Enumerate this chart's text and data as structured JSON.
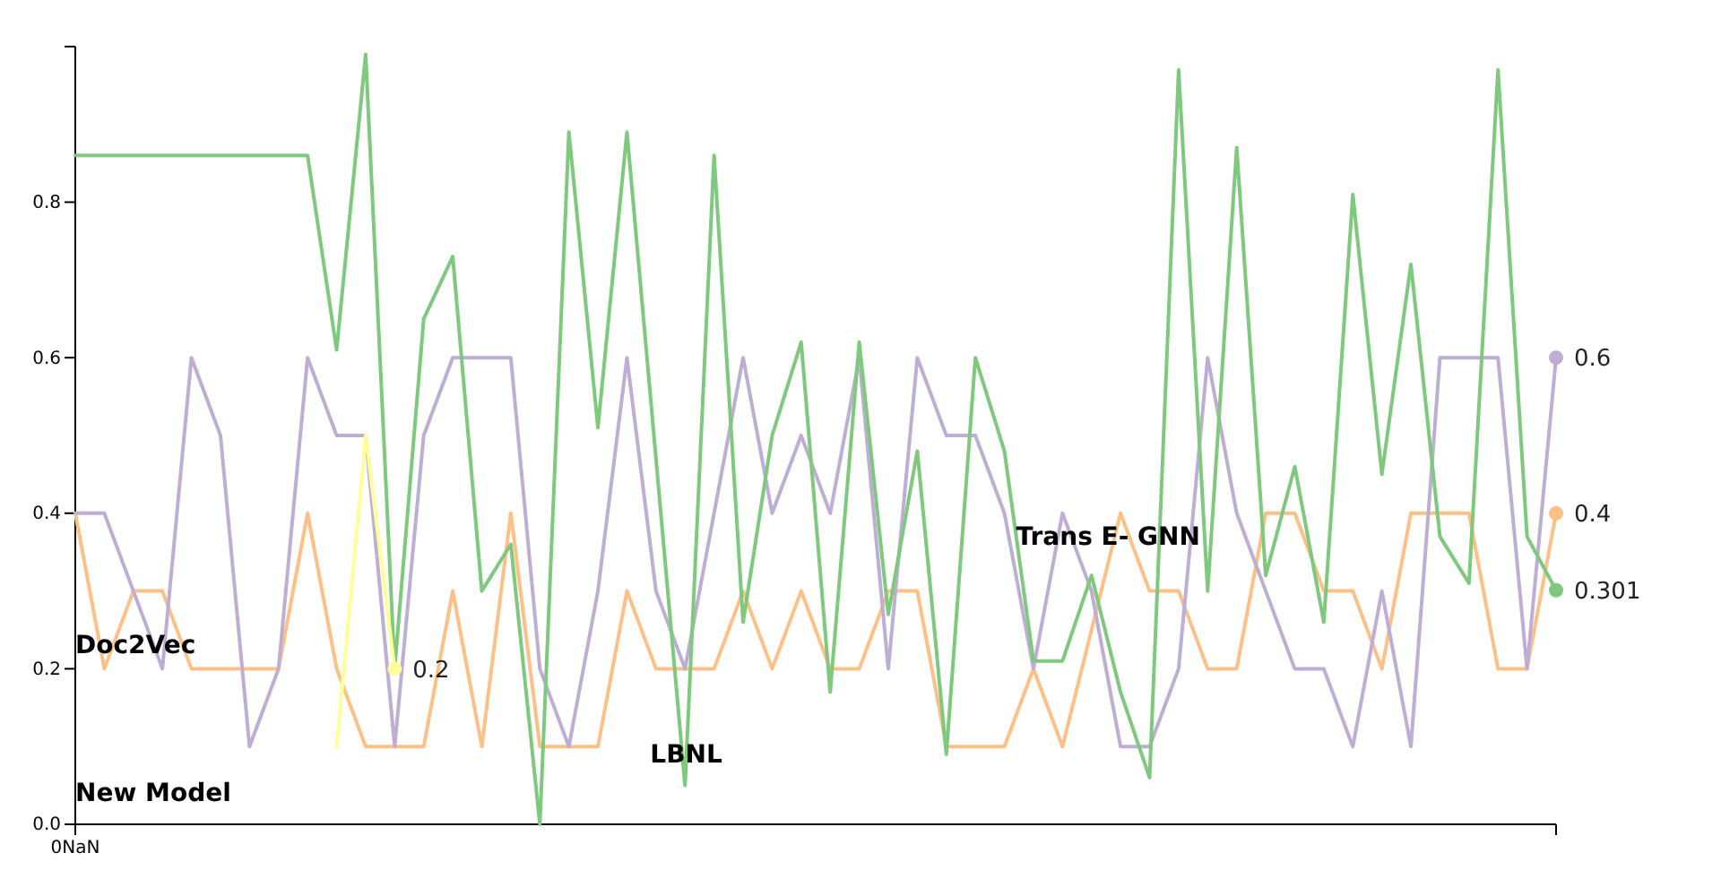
{
  "chart_data": {
    "type": "line",
    "categories": [
      "0NaN",
      null,
      null,
      null,
      null,
      null,
      null,
      null,
      null,
      null,
      null,
      null,
      null,
      null,
      null,
      null,
      null,
      null,
      null,
      null,
      null,
      null,
      null,
      null,
      null,
      null,
      null,
      null,
      null,
      null,
      null,
      null,
      null,
      null,
      null,
      null,
      null,
      null,
      null,
      null,
      null,
      null,
      null,
      null,
      null,
      null,
      null,
      null,
      null,
      null,
      null,
      null
    ],
    "ylim": [
      0,
      1
    ],
    "yticks": [
      {
        "value": 0,
        "label": "0.0"
      },
      {
        "value": 0.2,
        "label": "0.2"
      },
      {
        "value": 0.4,
        "label": "0.4"
      },
      {
        "value": 0.6,
        "label": "0.6"
      },
      {
        "value": 0.8,
        "label": "0.8"
      }
    ],
    "grid": false,
    "annotations": [
      "Doc2Vec",
      "LBNL",
      "Trans E- GNN",
      "New Model"
    ],
    "series": [
      {
        "color": "#fdc086",
        "values": [
          0.4,
          0.2,
          0.3,
          0.3,
          0.2,
          0.2,
          0.2,
          0.2,
          0.4,
          0.2,
          0.1,
          0.1,
          0.1,
          0.3,
          0.1,
          0.4,
          0.1,
          0.1,
          0.1,
          0.3,
          0.2,
          0.2,
          0.2,
          0.3,
          0.2,
          0.3,
          0.2,
          0.2,
          0.3,
          0.3,
          0.1,
          0.1,
          0.1,
          0.2,
          0.1,
          0.25,
          0.4,
          0.3,
          0.3,
          0.2,
          0.2,
          0.4,
          0.4,
          0.3,
          0.3,
          0.2,
          0.4,
          0.4,
          0.4,
          0.2,
          0.2,
          0.4
        ],
        "value_labels": [
          null,
          null,
          null,
          null,
          null,
          null,
          null,
          null,
          null,
          null,
          null,
          null,
          null,
          null,
          null,
          null,
          null,
          null,
          null,
          null,
          null,
          null,
          null,
          null,
          null,
          null,
          null,
          null,
          null,
          null,
          null,
          null,
          null,
          null,
          null,
          null,
          null,
          null,
          null,
          null,
          null,
          null,
          null,
          null,
          null,
          null,
          null,
          null,
          null,
          null,
          null,
          "0.4"
        ]
      },
      {
        "color": "#beaed4",
        "values": [
          0.4,
          0.4,
          0.3,
          0.2,
          0.6,
          0.5,
          0.1,
          0.2,
          0.6,
          0.5,
          0.5,
          0.1,
          0.5,
          0.6,
          0.6,
          0.6,
          0.2,
          0.1,
          0.3,
          0.6,
          0.3,
          0.2,
          0.4,
          0.6,
          0.4,
          0.5,
          0.4,
          0.6,
          0.2,
          0.6,
          0.5,
          0.5,
          0.4,
          0.2,
          0.4,
          0.3,
          0.1,
          0.1,
          0.2,
          0.6,
          0.4,
          0.3,
          0.2,
          0.2,
          0.1,
          0.3,
          0.1,
          0.6,
          0.6,
          0.6,
          0.2,
          0.6
        ],
        "value_labels": [
          null,
          null,
          null,
          null,
          null,
          null,
          null,
          null,
          null,
          null,
          null,
          null,
          null,
          null,
          null,
          null,
          null,
          null,
          null,
          null,
          null,
          null,
          null,
          null,
          null,
          null,
          null,
          null,
          null,
          null,
          null,
          null,
          null,
          null,
          null,
          null,
          null,
          null,
          null,
          null,
          null,
          null,
          null,
          null,
          null,
          null,
          null,
          null,
          null,
          null,
          null,
          "0.6"
        ]
      },
      {
        "color": "#7fc97f",
        "values": [
          0.86,
          0.86,
          0.86,
          0.86,
          0.86,
          0.86,
          0.86,
          0.86,
          0.86,
          0.61,
          0.99,
          0.2,
          0.65,
          0.73,
          0.3,
          0.36,
          0,
          0.89,
          0.51,
          0.89,
          0.47,
          0.05,
          0.86,
          0.26,
          0.5,
          0.62,
          0.17,
          0.62,
          0.27,
          0.48,
          0.09,
          0.6,
          0.48,
          0.21,
          0.21,
          0.32,
          0.17,
          0.06,
          0.97,
          0.3,
          0.87,
          0.32,
          0.46,
          0.26,
          0.81,
          0.45,
          0.72,
          0.37,
          0.31,
          0.97,
          0.37,
          0.301
        ],
        "value_labels": [
          null,
          null,
          null,
          null,
          null,
          null,
          null,
          null,
          null,
          null,
          null,
          null,
          null,
          null,
          null,
          null,
          null,
          null,
          null,
          null,
          null,
          null,
          null,
          null,
          null,
          null,
          null,
          null,
          null,
          null,
          null,
          null,
          null,
          null,
          null,
          null,
          null,
          null,
          null,
          null,
          null,
          null,
          null,
          null,
          null,
          null,
          null,
          null,
          null,
          null,
          null,
          "0.301"
        ]
      },
      {
        "color": "#ffff99",
        "values": [
          null,
          null,
          null,
          null,
          null,
          null,
          null,
          null,
          null,
          0.1,
          0.5,
          0.2,
          null,
          null,
          null,
          null,
          null,
          null,
          null,
          null,
          null,
          null,
          null,
          null,
          null,
          null,
          null,
          null,
          null,
          null,
          null,
          null,
          null,
          null,
          null,
          null,
          null,
          null,
          null,
          null,
          null,
          null,
          null,
          null,
          null,
          null,
          null,
          null,
          null,
          null,
          null,
          null
        ],
        "value_labels": [
          null,
          null,
          null,
          null,
          null,
          null,
          null,
          null,
          null,
          null,
          null,
          "0.2",
          null,
          null,
          null,
          null,
          null,
          null,
          null,
          null,
          null,
          null,
          null,
          null,
          null,
          null,
          null,
          null,
          null,
          null,
          null,
          null,
          null,
          null,
          null,
          null,
          null,
          null,
          null,
          null,
          null,
          null,
          null,
          null,
          null,
          null,
          null,
          null,
          null,
          null,
          null,
          null
        ]
      }
    ]
  }
}
